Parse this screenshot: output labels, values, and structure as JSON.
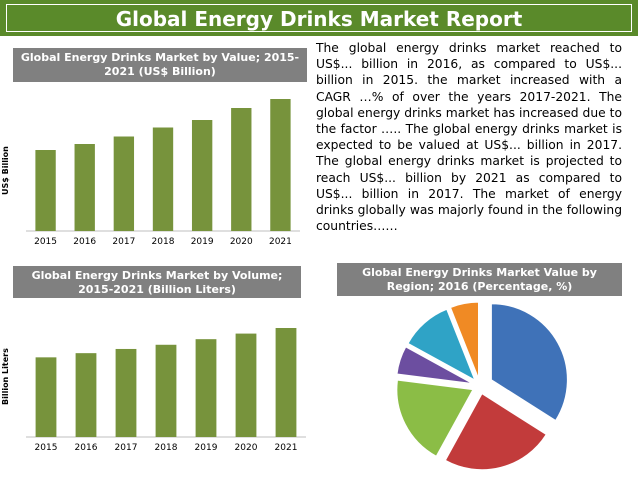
{
  "header": {
    "title": "Global Energy Drinks Market Report"
  },
  "paragraph": "The global energy drinks market reached to US$... billion in 2016, as compared to US$... billion in 2015. the market increased with a CAGR …% of over the years 2017-2021. The global energy drinks market has increased due to the factor ….. The global energy drinks market is expected to be valued at US$... billion in 2017.  The global energy drinks market is projected to reach US$... billion by 2021 as compared to US$... billion in 2017. The market of energy drinks globally was majorly found in the following countries……",
  "colors": {
    "banner": "#5a8a2a",
    "bar": "#77933c",
    "title_box": "#808080"
  },
  "chart_data": [
    {
      "type": "bar",
      "title": "Global Energy Drinks Market by Value; 2015-2021 (US$ Billion)",
      "ylabel": "US$ Billion",
      "categories": [
        "2015",
        "2016",
        "2017",
        "2018",
        "2019",
        "2020",
        "2021"
      ],
      "values": [
        54,
        58,
        63,
        69,
        74,
        82,
        88
      ]
    },
    {
      "type": "bar",
      "title": "Global Energy Drinks Market by Volume; 2015-2021 (Billion Liters)",
      "ylabel": "Billion Liters",
      "categories": [
        "2015",
        "2016",
        "2017",
        "2018",
        "2019",
        "2020",
        "2021"
      ],
      "values": [
        57,
        60,
        63,
        66,
        70,
        74,
        78
      ]
    },
    {
      "type": "pie",
      "title": "Global Energy Drinks Market Value by Region; 2016 (Percentage, %)",
      "slices": [
        {
          "value": 34,
          "color": "#3f72b8"
        },
        {
          "value": 24,
          "color": "#c23b3b"
        },
        {
          "value": 19,
          "color": "#8bbd46"
        },
        {
          "value": 6,
          "color": "#6c4ea0"
        },
        {
          "value": 11,
          "color": "#2fa3c6"
        },
        {
          "value": 6,
          "color": "#f08a24"
        }
      ]
    }
  ]
}
